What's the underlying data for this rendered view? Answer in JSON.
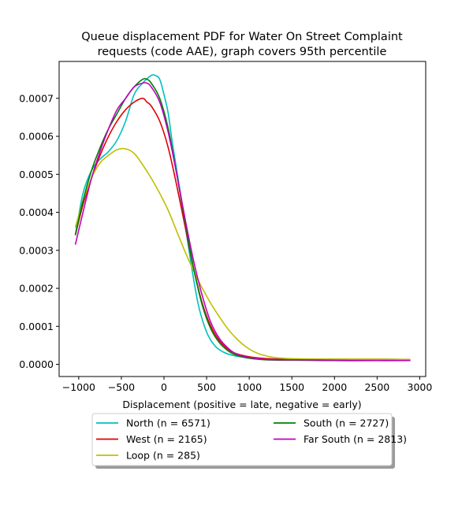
{
  "chart_data": {
    "type": "line",
    "title_lines": [
      "Queue displacement PDF for Water On Street Complaint",
      "requests (code AAE), graph covers 95th percentile"
    ],
    "xlabel": "Displacement (positive = late, negative = early)",
    "ylabel": "",
    "xlim": [
      -1230,
      3070
    ],
    "ylim": [
      -3.2e-05,
      0.000797
    ],
    "x_ticks": [
      -1000,
      -500,
      0,
      500,
      1000,
      1500,
      2000,
      2500,
      3000
    ],
    "x_tick_labels": [
      "−1000",
      "−500",
      "0",
      "500",
      "1000",
      "1500",
      "2000",
      "2500",
      "3000"
    ],
    "y_ticks": [
      0,
      0.0001,
      0.0002,
      0.0003,
      0.0004,
      0.0005,
      0.0006,
      0.0007
    ],
    "y_tick_labels": [
      "0.0000",
      "0.0001",
      "0.0002",
      "0.0003",
      "0.0004",
      "0.0005",
      "0.0006",
      "0.0007"
    ],
    "legend": {
      "placement": "below",
      "columns": 2
    },
    "series": [
      {
        "name": "North (n = 6571)",
        "color": "#00bfbf",
        "points": [
          [
            -1040,
            0.00034
          ],
          [
            -950,
            0.00045
          ],
          [
            -850,
            0.00051
          ],
          [
            -750,
            0.00054
          ],
          [
            -650,
            0.00056
          ],
          [
            -550,
            0.00059
          ],
          [
            -450,
            0.00064
          ],
          [
            -350,
            0.00071
          ],
          [
            -250,
            0.00074
          ],
          [
            -150,
            0.00076
          ],
          [
            -100,
            0.00076
          ],
          [
            -50,
            0.00075
          ],
          [
            0,
            0.00071
          ],
          [
            50,
            0.00066
          ],
          [
            100,
            0.00058
          ],
          [
            200,
            0.00044
          ],
          [
            300,
            0.00029
          ],
          [
            400,
            0.00016
          ],
          [
            500,
            8.5e-05
          ],
          [
            600,
            4.8e-05
          ],
          [
            700,
            3.2e-05
          ],
          [
            800,
            2.4e-05
          ],
          [
            900,
            2e-05
          ],
          [
            1000,
            1.8e-05
          ],
          [
            1200,
            1.5e-05
          ],
          [
            1500,
            1.4e-05
          ],
          [
            2000,
            1.4e-05
          ],
          [
            2500,
            1.4e-05
          ],
          [
            2890,
            1.2e-05
          ]
        ]
      },
      {
        "name": "West (n = 2165)",
        "color": "#e00000",
        "points": [
          [
            -1040,
            0.00034
          ],
          [
            -950,
            0.00042
          ],
          [
            -850,
            0.00049
          ],
          [
            -750,
            0.00055
          ],
          [
            -650,
            0.0006
          ],
          [
            -550,
            0.00064
          ],
          [
            -450,
            0.00067
          ],
          [
            -350,
            0.00069
          ],
          [
            -250,
            0.0007
          ],
          [
            -200,
            0.00069
          ],
          [
            -150,
            0.00068
          ],
          [
            -50,
            0.00064
          ],
          [
            50,
            0.00057
          ],
          [
            150,
            0.00047
          ],
          [
            250,
            0.00036
          ],
          [
            350,
            0.00025
          ],
          [
            450,
            0.00016
          ],
          [
            550,
            0.0001
          ],
          [
            650,
            6.2e-05
          ],
          [
            750,
            4e-05
          ],
          [
            850,
            2.8e-05
          ],
          [
            1000,
            2e-05
          ],
          [
            1200,
            1.5e-05
          ],
          [
            1500,
            1.2e-05
          ],
          [
            2000,
            1e-05
          ],
          [
            2500,
            1e-05
          ],
          [
            2890,
            1e-05
          ]
        ]
      },
      {
        "name": "Loop (n = 285)",
        "color": "#bfbf00",
        "points": [
          [
            -1040,
            0.00036
          ],
          [
            -950,
            0.00043
          ],
          [
            -850,
            0.00049
          ],
          [
            -750,
            0.00053
          ],
          [
            -650,
            0.00055
          ],
          [
            -550,
            0.000565
          ],
          [
            -450,
            0.000567
          ],
          [
            -350,
            0.000555
          ],
          [
            -250,
            0.000525
          ],
          [
            -150,
            0.00049
          ],
          [
            -50,
            0.00045
          ],
          [
            50,
            0.000405
          ],
          [
            150,
            0.00035
          ],
          [
            250,
            0.000295
          ],
          [
            350,
            0.000245
          ],
          [
            450,
            0.0002
          ],
          [
            550,
            0.00016
          ],
          [
            650,
            0.000125
          ],
          [
            750,
            9.3e-05
          ],
          [
            850,
            6.8e-05
          ],
          [
            950,
            4.8e-05
          ],
          [
            1050,
            3.4e-05
          ],
          [
            1150,
            2.5e-05
          ],
          [
            1300,
            1.8e-05
          ],
          [
            1500,
            1.5e-05
          ],
          [
            2000,
            1.4e-05
          ],
          [
            2500,
            1.4e-05
          ],
          [
            2890,
            1.3e-05
          ]
        ]
      },
      {
        "name": "South (n = 2727)",
        "color": "#008000",
        "points": [
          [
            -1040,
            0.00034
          ],
          [
            -950,
            0.00043
          ],
          [
            -850,
            0.00051
          ],
          [
            -750,
            0.00057
          ],
          [
            -650,
            0.00062
          ],
          [
            -550,
            0.00066
          ],
          [
            -450,
            0.0007
          ],
          [
            -350,
            0.00073
          ],
          [
            -250,
            0.00075
          ],
          [
            -200,
            0.00075
          ],
          [
            -150,
            0.00074
          ],
          [
            -50,
            0.0007
          ],
          [
            50,
            0.00062
          ],
          [
            150,
            0.0005
          ],
          [
            250,
            0.00037
          ],
          [
            350,
            0.00025
          ],
          [
            450,
            0.000155
          ],
          [
            550,
            9.3e-05
          ],
          [
            650,
            5.7e-05
          ],
          [
            750,
            3.6e-05
          ],
          [
            850,
            2.4e-05
          ],
          [
            1000,
            1.6e-05
          ],
          [
            1200,
            1.2e-05
          ],
          [
            1500,
            1.1e-05
          ],
          [
            2000,
            1e-05
          ],
          [
            2500,
            1e-05
          ],
          [
            2890,
            1e-05
          ]
        ]
      },
      {
        "name": "Far South (n = 2813)",
        "color": "#bf00bf",
        "points": [
          [
            -1040,
            0.000315
          ],
          [
            -950,
            0.0004
          ],
          [
            -850,
            0.00049
          ],
          [
            -750,
            0.00056
          ],
          [
            -650,
            0.00062
          ],
          [
            -550,
            0.00067
          ],
          [
            -450,
            0.0007
          ],
          [
            -350,
            0.00073
          ],
          [
            -250,
            0.00074
          ],
          [
            -200,
            0.00074
          ],
          [
            -150,
            0.00073
          ],
          [
            -50,
            0.00069
          ],
          [
            50,
            0.00061
          ],
          [
            150,
            0.0005
          ],
          [
            250,
            0.00038
          ],
          [
            350,
            0.00027
          ],
          [
            450,
            0.00018
          ],
          [
            550,
            0.00011
          ],
          [
            650,
            6.8e-05
          ],
          [
            750,
            4.3e-05
          ],
          [
            850,
            2.7e-05
          ],
          [
            1000,
            1.8e-05
          ],
          [
            1200,
            1.3e-05
          ],
          [
            1500,
            1.2e-05
          ],
          [
            2000,
            1.1e-05
          ],
          [
            2500,
            1e-05
          ],
          [
            2890,
            1e-05
          ]
        ]
      }
    ]
  }
}
